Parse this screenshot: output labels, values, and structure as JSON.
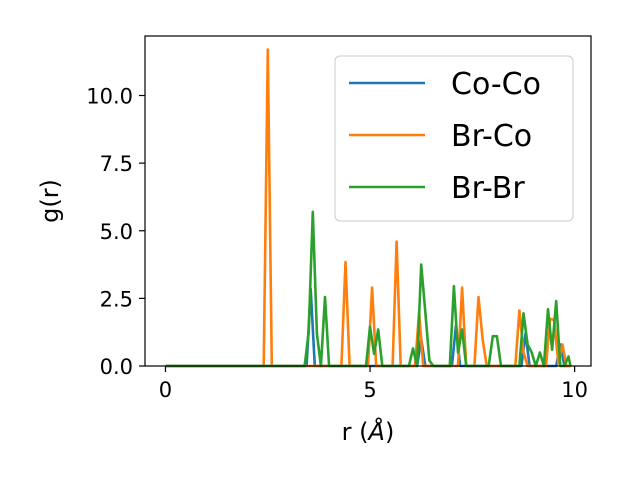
{
  "chart_data": {
    "type": "line",
    "title": "",
    "xlabel_prefix": "r (",
    "xlabel_unit": "Å",
    "xlabel_suffix": ")",
    "ylabel": "g(r)",
    "xlim": [
      -0.5,
      10.4
    ],
    "ylim": [
      0,
      12.2
    ],
    "xticks": [
      0,
      5,
      10
    ],
    "xtick_labels": [
      "0",
      "5",
      "10"
    ],
    "yticks": [
      0,
      2.5,
      5,
      7.5,
      10
    ],
    "ytick_labels": [
      "0.0",
      "2.5",
      "5.0",
      "7.5",
      "10.0"
    ],
    "grid": false,
    "legend_position": "top-right",
    "series": [
      {
        "name": "Co-Co",
        "color": "#1f77b4",
        "x": [
          0,
          3.45,
          3.55,
          3.65,
          3.75,
          6.0,
          6.15,
          6.25,
          6.35,
          6.45,
          7.0,
          7.1,
          7.2,
          7.3,
          8.6,
          8.7,
          8.8,
          8.9,
          9.0,
          9.4,
          9.55,
          9.65,
          9.75,
          9.85,
          9.9
        ],
        "y": [
          0,
          0,
          2.85,
          0,
          0,
          0,
          0,
          1.0,
          0,
          0,
          0,
          1.5,
          0,
          0,
          0,
          0,
          1.2,
          0,
          0,
          0,
          0,
          0.8,
          0,
          0,
          0
        ]
      },
      {
        "name": "Br-Co",
        "color": "#ff7f0e",
        "x": [
          0,
          2.4,
          2.5,
          2.6,
          4.3,
          4.4,
          4.5,
          4.95,
          5.05,
          5.15,
          5.55,
          5.65,
          5.75,
          6.1,
          6.2,
          6.3,
          7.15,
          7.25,
          7.35,
          7.55,
          7.65,
          7.75,
          7.85,
          8.55,
          8.65,
          8.75,
          8.85,
          9.3,
          9.4,
          9.5,
          9.6,
          9.7,
          9.8,
          9.9
        ],
        "y": [
          0,
          0,
          11.7,
          0,
          0,
          3.85,
          0,
          0,
          2.9,
          0,
          0,
          4.6,
          0,
          0,
          2.0,
          0,
          0,
          2.9,
          0,
          0,
          2.55,
          1.0,
          0,
          0,
          2.05,
          0.5,
          0,
          0,
          1.75,
          1.7,
          0.1,
          0.8,
          0,
          0
        ]
      },
      {
        "name": "Br-Br",
        "color": "#2ca02c",
        "x": [
          0,
          3.4,
          3.5,
          3.6,
          3.7,
          3.8,
          3.9,
          4.0,
          4.9,
          5.0,
          5.1,
          5.2,
          5.3,
          5.4,
          5.95,
          6.05,
          6.15,
          6.25,
          6.35,
          6.45,
          6.55,
          6.95,
          7.05,
          7.15,
          7.25,
          7.35,
          7.45,
          7.9,
          8.0,
          8.1,
          8.2,
          8.3,
          8.65,
          8.75,
          8.85,
          8.95,
          9.05,
          9.15,
          9.25,
          9.35,
          9.45,
          9.55,
          9.65,
          9.75,
          9.85,
          9.9
        ],
        "y": [
          0,
          0,
          1.25,
          5.7,
          1.2,
          0,
          2.55,
          0,
          0,
          1.45,
          0.45,
          1.35,
          0,
          0,
          0,
          0.65,
          0,
          3.75,
          2.0,
          0.2,
          0,
          0,
          2.95,
          0.5,
          1.35,
          0,
          0,
          0,
          1.1,
          1.1,
          0,
          0,
          0,
          1.95,
          0.8,
          0.5,
          0,
          0.5,
          0,
          2.1,
          0.6,
          2.4,
          0,
          0,
          0.35,
          0
        ]
      }
    ]
  }
}
